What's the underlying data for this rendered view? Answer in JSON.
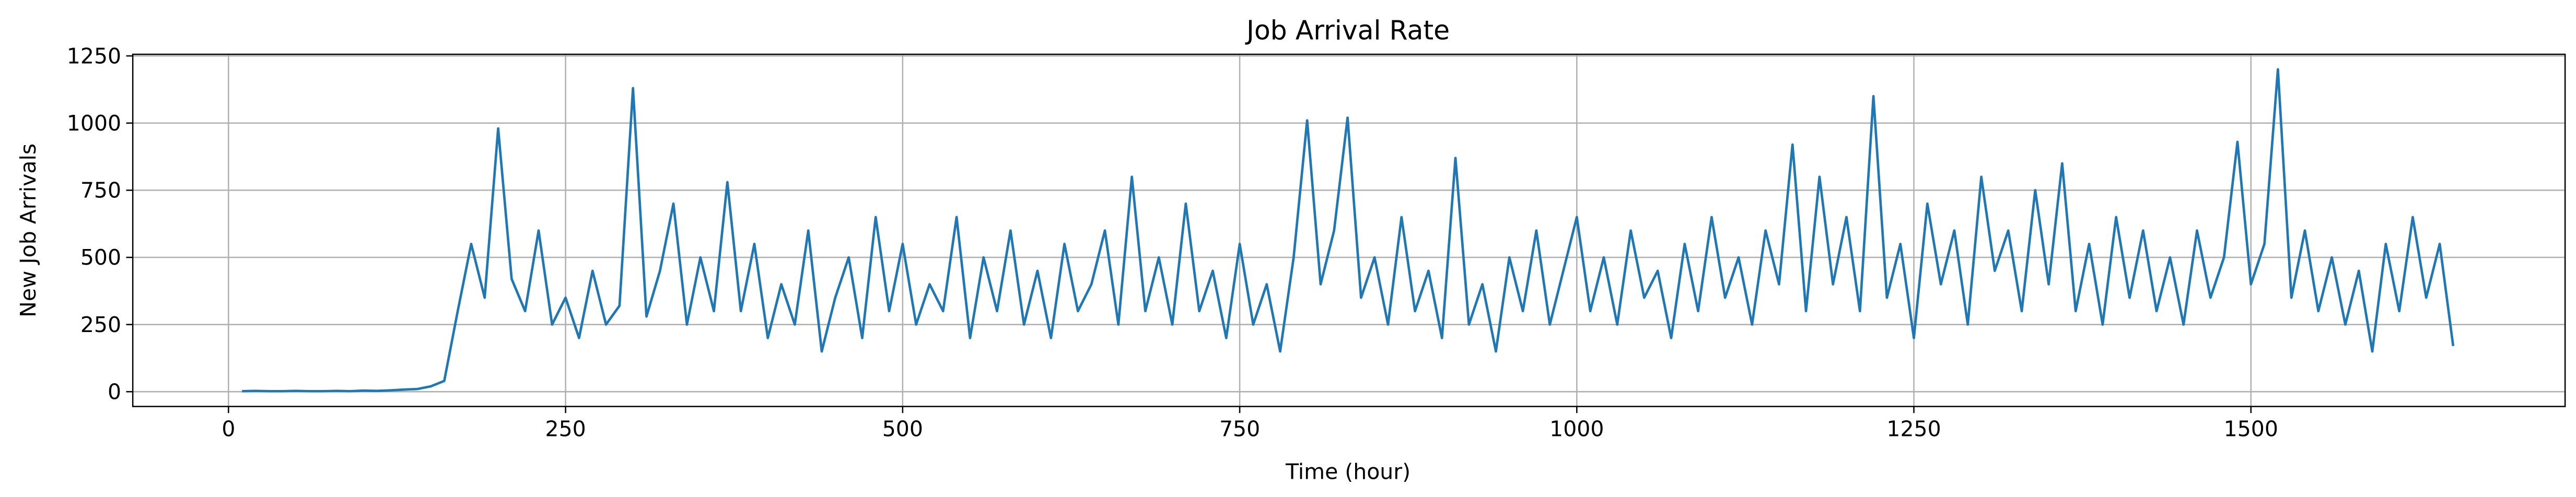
{
  "chart_data": {
    "type": "line",
    "title": "Job Arrival Rate",
    "xlabel": "Time (hour)",
    "ylabel": "New Job Arrivals",
    "x": [
      10,
      20,
      30,
      40,
      50,
      60,
      70,
      80,
      90,
      100,
      110,
      120,
      130,
      140,
      150,
      160,
      170,
      180,
      190,
      200,
      210,
      220,
      230,
      240,
      250,
      260,
      270,
      280,
      290,
      300,
      310,
      320,
      330,
      340,
      350,
      360,
      370,
      380,
      390,
      400,
      410,
      420,
      430,
      440,
      450,
      460,
      470,
      480,
      490,
      500,
      510,
      520,
      530,
      540,
      550,
      560,
      570,
      580,
      590,
      600,
      610,
      620,
      630,
      640,
      650,
      660,
      670,
      680,
      690,
      700,
      710,
      720,
      730,
      740,
      750,
      760,
      770,
      780,
      790,
      800,
      810,
      820,
      830,
      840,
      850,
      860,
      870,
      880,
      890,
      900,
      910,
      920,
      930,
      940,
      950,
      960,
      970,
      980,
      990,
      1000,
      1010,
      1020,
      1030,
      1040,
      1050,
      1060,
      1070,
      1080,
      1090,
      1100,
      1110,
      1120,
      1130,
      1140,
      1150,
      1160,
      1170,
      1180,
      1190,
      1200,
      1210,
      1220,
      1230,
      1240,
      1250,
      1260,
      1270,
      1280,
      1290,
      1300,
      1310,
      1320,
      1330,
      1340,
      1350,
      1360,
      1370,
      1380,
      1390,
      1400,
      1410,
      1420,
      1430,
      1440,
      1450,
      1460,
      1470,
      1480,
      1490,
      1500,
      1510,
      1520,
      1530,
      1540,
      1550,
      1560,
      1570,
      1580,
      1590,
      1600,
      1610,
      1620,
      1630,
      1640,
      1650
    ],
    "series": [
      {
        "color": "#1f77b4",
        "values": [
          2,
          3,
          2,
          2,
          3,
          2,
          2,
          3,
          2,
          4,
          3,
          5,
          8,
          10,
          20,
          40,
          300,
          550,
          350,
          980,
          420,
          300,
          600,
          250,
          350,
          200,
          450,
          250,
          320,
          1130,
          280,
          450,
          700,
          250,
          500,
          300,
          780,
          300,
          550,
          200,
          400,
          250,
          600,
          150,
          350,
          500,
          200,
          650,
          300,
          550,
          250,
          400,
          300,
          650,
          200,
          500,
          300,
          600,
          250,
          450,
          200,
          550,
          300,
          400,
          600,
          250,
          800,
          300,
          500,
          250,
          700,
          300,
          450,
          200,
          550,
          250,
          400,
          150,
          500,
          1010,
          400,
          600,
          1020,
          350,
          500,
          250,
          650,
          300,
          450,
          200,
          870,
          250,
          400,
          150,
          500,
          300,
          600,
          250,
          450,
          650,
          300,
          500,
          250,
          600,
          350,
          450,
          200,
          550,
          300,
          650,
          350,
          500,
          250,
          600,
          400,
          920,
          300,
          800,
          400,
          650,
          300,
          1100,
          350,
          550,
          200,
          700,
          400,
          600,
          250,
          800,
          450,
          600,
          300,
          750,
          400,
          850,
          300,
          550,
          250,
          650,
          350,
          600,
          300,
          500,
          250,
          600,
          350,
          500,
          930,
          400,
          550,
          1200,
          350,
          600,
          300,
          500,
          250,
          450,
          150,
          550,
          300,
          650,
          350,
          550,
          170
        ]
      }
    ],
    "xlim": [
      -71,
      1733
    ],
    "ylim": [
      -55,
      1256
    ],
    "xticks": [
      0,
      250,
      500,
      750,
      1000,
      1250,
      1500
    ],
    "yticks": [
      0,
      250,
      500,
      750,
      1000,
      1250
    ],
    "grid": true
  }
}
